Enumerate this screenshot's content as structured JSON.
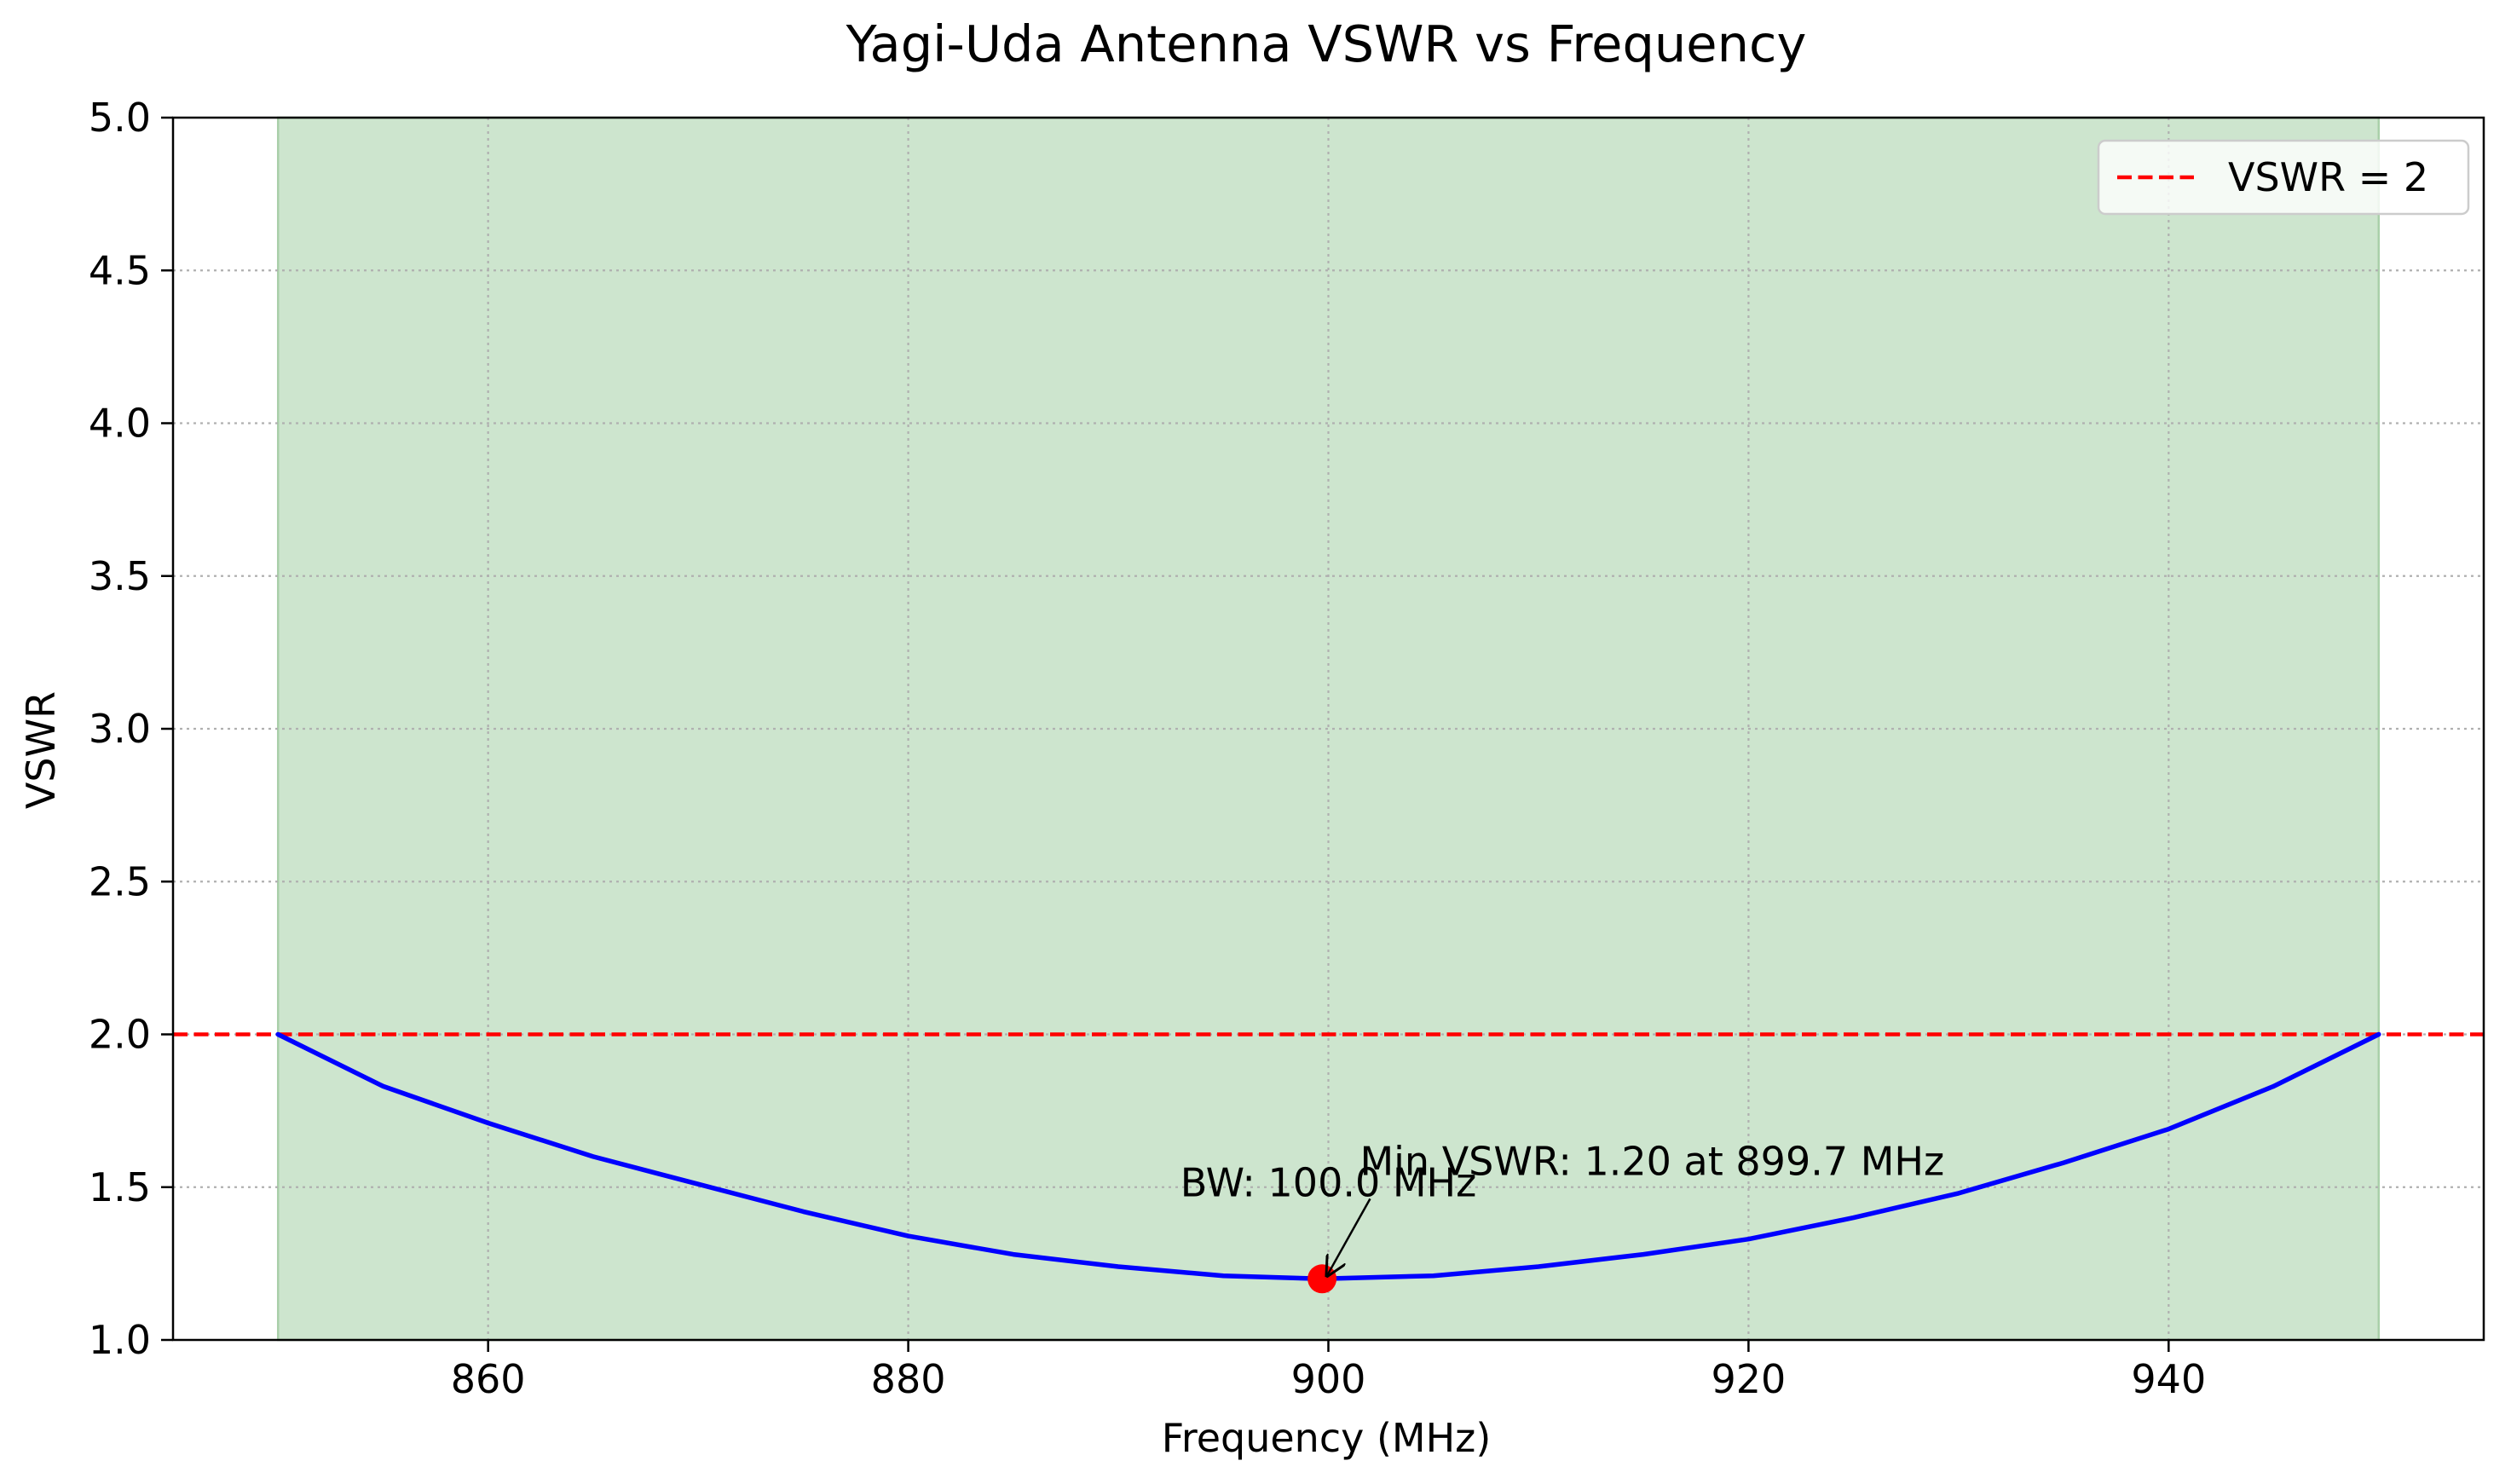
{
  "chart_data": {
    "type": "line",
    "title": "Yagi-Uda Antenna VSWR vs Frequency",
    "xlabel": "Frequency (MHz)",
    "ylabel": "VSWR",
    "xlim": [
      845,
      955
    ],
    "ylim": [
      1.0,
      5.0
    ],
    "xticks": [
      860,
      880,
      900,
      920,
      940
    ],
    "yticks": [
      1.0,
      1.5,
      2.0,
      2.5,
      3.0,
      3.5,
      4.0,
      4.5,
      5.0
    ],
    "xtick_labels": [
      "860",
      "880",
      "900",
      "920",
      "940"
    ],
    "ytick_labels": [
      "1.0",
      "1.5",
      "2.0",
      "2.5",
      "3.0",
      "3.5",
      "4.0",
      "4.5",
      "5.0"
    ],
    "grid": true,
    "series": [
      {
        "name": "VSWR",
        "color": "#0000ff",
        "x": [
          850,
          855,
          860,
          865,
          870,
          875,
          880,
          885,
          890,
          895,
          899.7,
          905,
          910,
          915,
          920,
          925,
          930,
          935,
          940,
          945,
          950
        ],
        "y": [
          2.0,
          1.83,
          1.71,
          1.6,
          1.51,
          1.42,
          1.34,
          1.28,
          1.24,
          1.21,
          1.2,
          1.21,
          1.24,
          1.28,
          1.33,
          1.4,
          1.48,
          1.58,
          1.69,
          1.83,
          2.0
        ]
      }
    ],
    "threshold_line": {
      "label": "VSWR = 2",
      "y": 2.0,
      "color": "#ff0000",
      "style": "dashed"
    },
    "bandwidth_region": {
      "x_start": 850,
      "x_end": 950,
      "color": "#cde5ce"
    },
    "min_point": {
      "x": 899.7,
      "y": 1.2,
      "color": "#ff0000"
    },
    "annotations": [
      {
        "text": "Min VSWR: 1.20 at 899.7 MHz",
        "x": 901.5,
        "y": 1.54,
        "arrow_to": [
          899.7,
          1.2
        ]
      },
      {
        "text": "BW: 100.0 MHz",
        "x": 900,
        "y": 1.47
      }
    ],
    "legend": {
      "position": "top-right",
      "entries": [
        "VSWR = 2"
      ]
    }
  }
}
